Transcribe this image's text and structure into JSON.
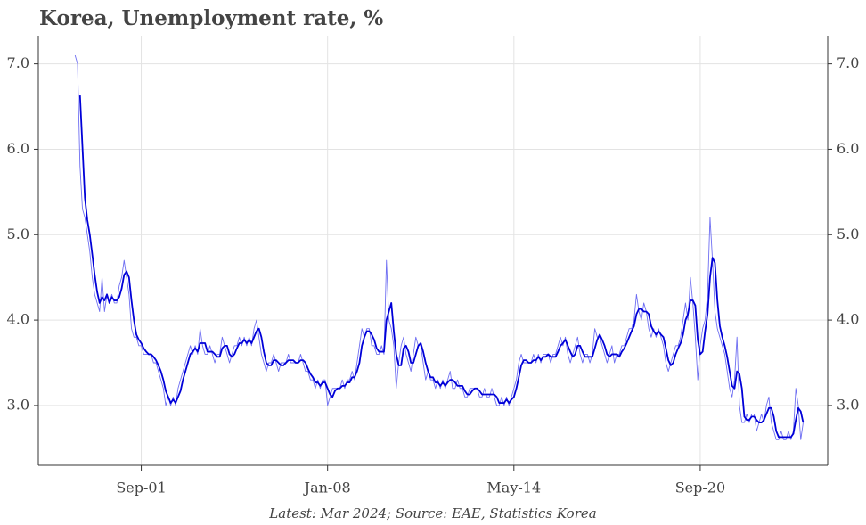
{
  "chart_data": {
    "type": "line",
    "title": "Korea, Unemployment rate, %",
    "subtitle": "Latest: Mar 2024; Source: EAE, Statistics Korea",
    "x": [
      "1999-06",
      "1999-07",
      "1999-08",
      "1999-09",
      "1999-10",
      "1999-11",
      "1999-12",
      "2000-01",
      "2000-02",
      "2000-03",
      "2000-04",
      "2000-05",
      "2000-06",
      "2000-07",
      "2000-08",
      "2000-09",
      "2000-10",
      "2000-11",
      "2000-12",
      "2001-01",
      "2001-02",
      "2001-03",
      "2001-04",
      "2001-05",
      "2001-06",
      "2001-07",
      "2001-08",
      "2001-09",
      "2001-10",
      "2001-11",
      "2001-12",
      "2002-01",
      "2002-02",
      "2002-03",
      "2002-04",
      "2002-05",
      "2002-06",
      "2002-07",
      "2002-08",
      "2002-09",
      "2002-10",
      "2002-11",
      "2002-12",
      "2003-01",
      "2003-02",
      "2003-03",
      "2003-04",
      "2003-05",
      "2003-06",
      "2003-07",
      "2003-08",
      "2003-09",
      "2003-10",
      "2003-11",
      "2003-12",
      "2004-01",
      "2004-02",
      "2004-03",
      "2004-04",
      "2004-05",
      "2004-06",
      "2004-07",
      "2004-08",
      "2004-09",
      "2004-10",
      "2004-11",
      "2004-12",
      "2005-01",
      "2005-02",
      "2005-03",
      "2005-04",
      "2005-05",
      "2005-06",
      "2005-07",
      "2005-08",
      "2005-09",
      "2005-10",
      "2005-11",
      "2005-12",
      "2006-01",
      "2006-02",
      "2006-03",
      "2006-04",
      "2006-05",
      "2006-06",
      "2006-07",
      "2006-08",
      "2006-09",
      "2006-10",
      "2006-11",
      "2006-12",
      "2007-01",
      "2007-02",
      "2007-03",
      "2007-04",
      "2007-05",
      "2007-06",
      "2007-07",
      "2007-08",
      "2007-09",
      "2007-10",
      "2007-11",
      "2007-12",
      "2008-01",
      "2008-02",
      "2008-03",
      "2008-04",
      "2008-05",
      "2008-06",
      "2008-07",
      "2008-08",
      "2008-09",
      "2008-10",
      "2008-11",
      "2008-12",
      "2009-01",
      "2009-02",
      "2009-03",
      "2009-04",
      "2009-05",
      "2009-06",
      "2009-07",
      "2009-08",
      "2009-09",
      "2009-10",
      "2009-11",
      "2009-12",
      "2010-01",
      "2010-02",
      "2010-03",
      "2010-04",
      "2010-05",
      "2010-06",
      "2010-07",
      "2010-08",
      "2010-09",
      "2010-10",
      "2010-11",
      "2010-12",
      "2011-01",
      "2011-02",
      "2011-03",
      "2011-04",
      "2011-05",
      "2011-06",
      "2011-07",
      "2011-08",
      "2011-09",
      "2011-10",
      "2011-11",
      "2011-12",
      "2012-01",
      "2012-02",
      "2012-03",
      "2012-04",
      "2012-05",
      "2012-06",
      "2012-07",
      "2012-08",
      "2012-09",
      "2012-10",
      "2012-11",
      "2012-12",
      "2013-01",
      "2013-02",
      "2013-03",
      "2013-04",
      "2013-05",
      "2013-06",
      "2013-07",
      "2013-08",
      "2013-09",
      "2013-10",
      "2013-11",
      "2013-12",
      "2014-01",
      "2014-02",
      "2014-03",
      "2014-04",
      "2014-05",
      "2014-06",
      "2014-07",
      "2014-08",
      "2014-09",
      "2014-10",
      "2014-11",
      "2014-12",
      "2015-01",
      "2015-02",
      "2015-03",
      "2015-04",
      "2015-05",
      "2015-06",
      "2015-07",
      "2015-08",
      "2015-09",
      "2015-10",
      "2015-11",
      "2015-12",
      "2016-01",
      "2016-02",
      "2016-03",
      "2016-04",
      "2016-05",
      "2016-06",
      "2016-07",
      "2016-08",
      "2016-09",
      "2016-10",
      "2016-11",
      "2016-12",
      "2017-01",
      "2017-02",
      "2017-03",
      "2017-04",
      "2017-05",
      "2017-06",
      "2017-07",
      "2017-08",
      "2017-09",
      "2017-10",
      "2017-11",
      "2017-12",
      "2018-01",
      "2018-02",
      "2018-03",
      "2018-04",
      "2018-05",
      "2018-06",
      "2018-07",
      "2018-08",
      "2018-09",
      "2018-10",
      "2018-11",
      "2018-12",
      "2019-01",
      "2019-02",
      "2019-03",
      "2019-04",
      "2019-05",
      "2019-06",
      "2019-07",
      "2019-08",
      "2019-09",
      "2019-10",
      "2019-11",
      "2019-12",
      "2020-01",
      "2020-02",
      "2020-03",
      "2020-04",
      "2020-05",
      "2020-06",
      "2020-07",
      "2020-08",
      "2020-09",
      "2020-10",
      "2020-11",
      "2020-12",
      "2021-01",
      "2021-02",
      "2021-03",
      "2021-04",
      "2021-05",
      "2021-06",
      "2021-07",
      "2021-08",
      "2021-09",
      "2021-10",
      "2021-11",
      "2021-12",
      "2022-01",
      "2022-02",
      "2022-03",
      "2022-04",
      "2022-05",
      "2022-06",
      "2022-07",
      "2022-08",
      "2022-09",
      "2022-10",
      "2022-11",
      "2022-12",
      "2023-01",
      "2023-02",
      "2023-03",
      "2023-04",
      "2023-05",
      "2023-06",
      "2023-07",
      "2023-08",
      "2023-09",
      "2023-10",
      "2023-11",
      "2023-12",
      "2024-01",
      "2024-02",
      "2024-03"
    ],
    "series": [
      {
        "color": "#6f6ff2",
        "width": 0.9,
        "values": [
          7.1,
          7.0,
          5.8,
          5.3,
          5.2,
          5.0,
          4.8,
          4.5,
          4.3,
          4.2,
          4.1,
          4.5,
          4.1,
          4.3,
          4.2,
          4.3,
          4.2,
          4.2,
          4.4,
          4.5,
          4.7,
          4.5,
          4.3,
          3.9,
          3.8,
          3.8,
          3.7,
          3.7,
          3.6,
          3.6,
          3.6,
          3.6,
          3.5,
          3.5,
          3.4,
          3.3,
          3.2,
          3.0,
          3.1,
          3.0,
          3.1,
          3.0,
          3.2,
          3.3,
          3.4,
          3.5,
          3.6,
          3.7,
          3.6,
          3.7,
          3.6,
          3.9,
          3.7,
          3.6,
          3.6,
          3.7,
          3.6,
          3.5,
          3.6,
          3.6,
          3.8,
          3.7,
          3.6,
          3.5,
          3.6,
          3.7,
          3.7,
          3.8,
          3.7,
          3.8,
          3.7,
          3.8,
          3.7,
          3.9,
          4.0,
          3.8,
          3.6,
          3.5,
          3.4,
          3.5,
          3.5,
          3.6,
          3.5,
          3.4,
          3.5,
          3.5,
          3.5,
          3.6,
          3.5,
          3.5,
          3.5,
          3.5,
          3.6,
          3.5,
          3.4,
          3.4,
          3.3,
          3.3,
          3.2,
          3.3,
          3.2,
          3.3,
          3.3,
          3.0,
          3.1,
          3.2,
          3.2,
          3.2,
          3.2,
          3.3,
          3.2,
          3.3,
          3.3,
          3.4,
          3.3,
          3.5,
          3.7,
          3.9,
          3.8,
          3.9,
          3.9,
          3.7,
          3.7,
          3.6,
          3.6,
          3.7,
          3.6,
          4.7,
          4.0,
          3.9,
          3.7,
          3.2,
          3.5,
          3.7,
          3.8,
          3.6,
          3.5,
          3.4,
          3.6,
          3.8,
          3.7,
          3.7,
          3.5,
          3.3,
          3.4,
          3.3,
          3.3,
          3.2,
          3.3,
          3.2,
          3.3,
          3.2,
          3.3,
          3.4,
          3.2,
          3.2,
          3.3,
          3.2,
          3.2,
          3.1,
          3.1,
          3.2,
          3.2,
          3.2,
          3.2,
          3.1,
          3.1,
          3.2,
          3.1,
          3.1,
          3.2,
          3.1,
          3.0,
          3.0,
          3.1,
          3.0,
          3.1,
          3.0,
          3.1,
          3.2,
          3.3,
          3.5,
          3.6,
          3.5,
          3.5,
          3.5,
          3.5,
          3.6,
          3.5,
          3.6,
          3.5,
          3.6,
          3.6,
          3.6,
          3.5,
          3.6,
          3.6,
          3.7,
          3.8,
          3.7,
          3.8,
          3.6,
          3.5,
          3.6,
          3.7,
          3.8,
          3.6,
          3.5,
          3.6,
          3.6,
          3.5,
          3.6,
          3.9,
          3.8,
          3.8,
          3.7,
          3.6,
          3.5,
          3.6,
          3.7,
          3.5,
          3.6,
          3.6,
          3.7,
          3.7,
          3.8,
          3.9,
          3.9,
          4.0,
          4.3,
          4.1,
          4.0,
          4.2,
          4.1,
          3.9,
          3.8,
          3.9,
          3.8,
          3.9,
          3.8,
          3.7,
          3.5,
          3.4,
          3.5,
          3.6,
          3.7,
          3.7,
          3.8,
          4.0,
          4.2,
          4.0,
          4.5,
          4.2,
          3.8,
          3.3,
          3.7,
          3.9,
          4.0,
          4.3,
          5.2,
          4.7,
          4.1,
          3.9,
          3.8,
          3.7,
          3.6,
          3.4,
          3.2,
          3.1,
          3.3,
          3.8,
          3.0,
          2.8,
          2.8,
          2.9,
          2.8,
          2.9,
          2.9,
          2.7,
          2.8,
          2.9,
          2.8,
          3.0,
          3.1,
          2.8,
          2.7,
          2.6,
          2.6,
          2.7,
          2.6,
          2.6,
          2.7,
          2.6,
          2.7,
          3.2,
          3.0,
          2.6,
          2.8
        ]
      },
      {
        "color": "#0000d8",
        "width": 1.8,
        "values": [
          null,
          null,
          6.63,
          6.03,
          5.43,
          5.17,
          5.0,
          4.77,
          4.53,
          4.33,
          4.2,
          4.27,
          4.23,
          4.3,
          4.2,
          4.27,
          4.23,
          4.23,
          4.27,
          4.37,
          4.53,
          4.57,
          4.5,
          4.23,
          4.0,
          3.83,
          3.77,
          3.73,
          3.67,
          3.63,
          3.6,
          3.6,
          3.57,
          3.53,
          3.47,
          3.4,
          3.3,
          3.17,
          3.1,
          3.03,
          3.07,
          3.03,
          3.1,
          3.17,
          3.3,
          3.4,
          3.5,
          3.6,
          3.63,
          3.67,
          3.63,
          3.73,
          3.73,
          3.73,
          3.63,
          3.63,
          3.63,
          3.6,
          3.57,
          3.57,
          3.67,
          3.7,
          3.7,
          3.6,
          3.57,
          3.6,
          3.67,
          3.73,
          3.73,
          3.77,
          3.73,
          3.77,
          3.73,
          3.8,
          3.87,
          3.9,
          3.8,
          3.63,
          3.5,
          3.47,
          3.47,
          3.53,
          3.53,
          3.5,
          3.47,
          3.47,
          3.5,
          3.53,
          3.53,
          3.53,
          3.5,
          3.5,
          3.53,
          3.53,
          3.5,
          3.43,
          3.37,
          3.33,
          3.27,
          3.27,
          3.23,
          3.27,
          3.27,
          3.2,
          3.13,
          3.1,
          3.17,
          3.2,
          3.2,
          3.23,
          3.23,
          3.27,
          3.27,
          3.33,
          3.33,
          3.4,
          3.5,
          3.7,
          3.8,
          3.87,
          3.87,
          3.83,
          3.77,
          3.67,
          3.63,
          3.63,
          3.63,
          4.0,
          4.1,
          4.2,
          3.87,
          3.6,
          3.47,
          3.47,
          3.67,
          3.7,
          3.63,
          3.5,
          3.5,
          3.6,
          3.7,
          3.73,
          3.63,
          3.5,
          3.4,
          3.33,
          3.33,
          3.27,
          3.27,
          3.23,
          3.27,
          3.23,
          3.27,
          3.3,
          3.3,
          3.27,
          3.23,
          3.23,
          3.23,
          3.17,
          3.13,
          3.13,
          3.17,
          3.2,
          3.2,
          3.17,
          3.13,
          3.13,
          3.13,
          3.13,
          3.13,
          3.13,
          3.1,
          3.03,
          3.03,
          3.03,
          3.07,
          3.03,
          3.07,
          3.1,
          3.2,
          3.33,
          3.47,
          3.53,
          3.53,
          3.5,
          3.5,
          3.53,
          3.53,
          3.57,
          3.53,
          3.57,
          3.57,
          3.6,
          3.57,
          3.57,
          3.57,
          3.63,
          3.7,
          3.73,
          3.77,
          3.7,
          3.63,
          3.57,
          3.6,
          3.7,
          3.7,
          3.63,
          3.57,
          3.57,
          3.57,
          3.57,
          3.67,
          3.77,
          3.83,
          3.77,
          3.7,
          3.6,
          3.57,
          3.6,
          3.6,
          3.6,
          3.57,
          3.63,
          3.67,
          3.73,
          3.8,
          3.87,
          3.93,
          4.07,
          4.13,
          4.13,
          4.1,
          4.1,
          4.07,
          3.93,
          3.87,
          3.83,
          3.87,
          3.83,
          3.8,
          3.67,
          3.53,
          3.47,
          3.5,
          3.6,
          3.67,
          3.73,
          3.83,
          4.0,
          4.07,
          4.23,
          4.23,
          4.17,
          3.77,
          3.6,
          3.63,
          3.87,
          4.07,
          4.5,
          4.73,
          4.67,
          4.23,
          3.93,
          3.8,
          3.7,
          3.57,
          3.4,
          3.23,
          3.2,
          3.4,
          3.37,
          3.2,
          2.87,
          2.83,
          2.83,
          2.87,
          2.87,
          2.83,
          2.8,
          2.8,
          2.83,
          2.9,
          2.97,
          2.97,
          2.87,
          2.7,
          2.63,
          2.63,
          2.63,
          2.63,
          2.63,
          2.63,
          2.67,
          2.83,
          2.97,
          2.93,
          2.8
        ]
      }
    ],
    "xlim": [
      "1998-03",
      "2025-01"
    ],
    "xticks": [
      {
        "value": "2001-09",
        "label": "Sep-01"
      },
      {
        "value": "2008-01",
        "label": "Jan-08"
      },
      {
        "value": "2014-05",
        "label": "May-14"
      },
      {
        "value": "2020-09",
        "label": "Sep-20"
      }
    ],
    "ylim": [
      2.3,
      7.33
    ],
    "yticks": [
      {
        "value": 3,
        "label": "3.0"
      },
      {
        "value": 4,
        "label": "4.0"
      },
      {
        "value": 5,
        "label": "5.0"
      },
      {
        "value": 6,
        "label": "6.0"
      },
      {
        "value": 7,
        "label": "7.0"
      }
    ],
    "grid": true,
    "right_axis": true
  }
}
